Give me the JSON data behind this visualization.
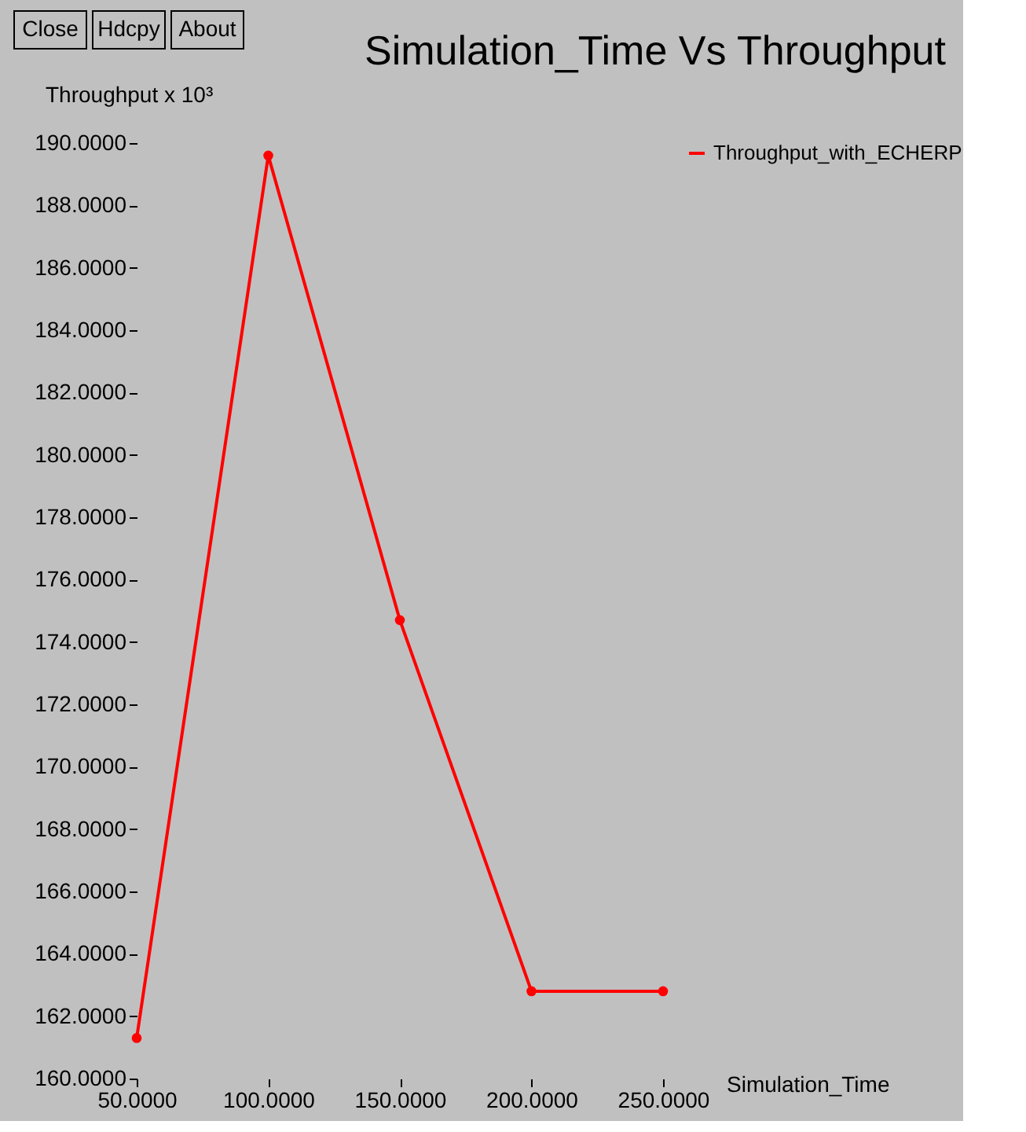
{
  "chart_data": {
    "type": "line",
    "title": "Simulation_Time Vs Throughput",
    "xlabel": "Simulation_Time",
    "ylabel": "Throughput x 10³",
    "annotations": [
      "Close",
      "Hdcpy",
      "About"
    ],
    "x": [
      50,
      100,
      150,
      200,
      250
    ],
    "series": [
      {
        "name": "Throughput_with_ECHERP",
        "color": "#ff0000",
        "values": [
          161.3,
          189.6,
          174.7,
          162.8,
          162.8
        ]
      }
    ],
    "xlim": [
      50,
      250
    ],
    "xticks": [
      {
        "value": 50,
        "label": "50.0000"
      },
      {
        "value": 100,
        "label": "100.0000"
      },
      {
        "value": 150,
        "label": "150.0000"
      },
      {
        "value": 200,
        "label": "200.0000"
      },
      {
        "value": 250,
        "label": "250.0000"
      }
    ],
    "ylim": [
      160,
      190
    ],
    "yticks": [
      {
        "value": 160,
        "label": "160.0000"
      },
      {
        "value": 162,
        "label": "162.0000"
      },
      {
        "value": 164,
        "label": "164.0000"
      },
      {
        "value": 166,
        "label": "166.0000"
      },
      {
        "value": 168,
        "label": "168.0000"
      },
      {
        "value": 170,
        "label": "170.0000"
      },
      {
        "value": 172,
        "label": "172.0000"
      },
      {
        "value": 174,
        "label": "174.0000"
      },
      {
        "value": 176,
        "label": "176.0000"
      },
      {
        "value": 178,
        "label": "178.0000"
      },
      {
        "value": 180,
        "label": "180.0000"
      },
      {
        "value": 182,
        "label": "182.0000"
      },
      {
        "value": 184,
        "label": "184.0000"
      },
      {
        "value": 186,
        "label": "186.0000"
      },
      {
        "value": 188,
        "label": "188.0000"
      },
      {
        "value": 190,
        "label": "190.0000"
      }
    ],
    "grid": false,
    "legend": "right",
    "marker": "circle",
    "line_style": "solid"
  }
}
